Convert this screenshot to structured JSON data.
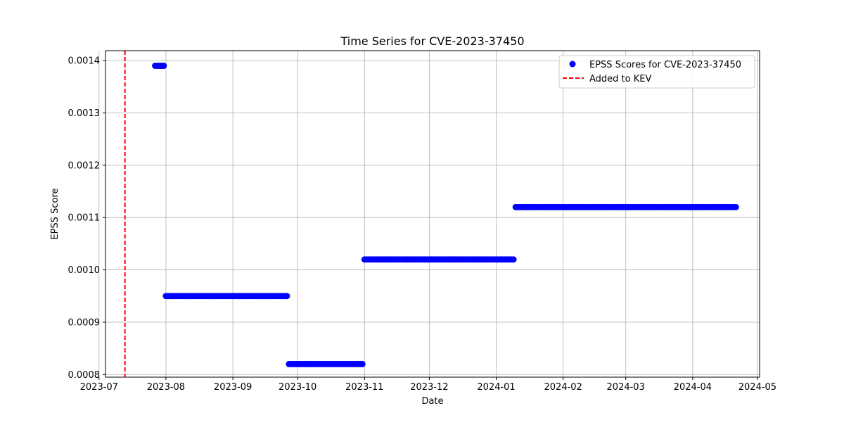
{
  "chart_data": {
    "type": "scatter",
    "title": "Time Series for CVE-2023-37450",
    "xlabel": "Date",
    "ylabel": "EPSS Score",
    "x_axis_type": "date",
    "xlim": [
      "2023-07-04",
      "2024-05-02"
    ],
    "ylim": [
      0.000795,
      0.001419
    ],
    "x_ticks": [
      "2023-07",
      "2023-08",
      "2023-09",
      "2023-10",
      "2023-11",
      "2023-12",
      "2024-01",
      "2024-02",
      "2024-03",
      "2024-04",
      "2024-05"
    ],
    "y_ticks": [
      "0.0008",
      "0.0009",
      "0.0010",
      "0.0011",
      "0.0012",
      "0.0013",
      "0.0014"
    ],
    "grid": true,
    "legend_position": "top-right",
    "marker_color": "#0000ff",
    "kev_color": "#ff0000",
    "series": [
      {
        "name": "EPSS Scores for CVE-2023-37450",
        "marker": "circle",
        "points": [
          {
            "start": "2023-07-27",
            "end": "2023-07-31",
            "y": 0.00139
          },
          {
            "start": "2023-08-01",
            "end": "2023-09-26",
            "y": 0.00095
          },
          {
            "start": "2023-09-27",
            "end": "2023-10-31",
            "y": 0.00082
          },
          {
            "start": "2023-11-01",
            "end": "2024-01-09",
            "y": 0.00102
          },
          {
            "start": "2024-01-10",
            "end": "2024-04-21",
            "y": 0.00112
          }
        ]
      }
    ],
    "annotations": [
      {
        "name": "Added to KEV",
        "type": "vline",
        "x": "2023-07-13",
        "style": "dashed"
      }
    ]
  }
}
